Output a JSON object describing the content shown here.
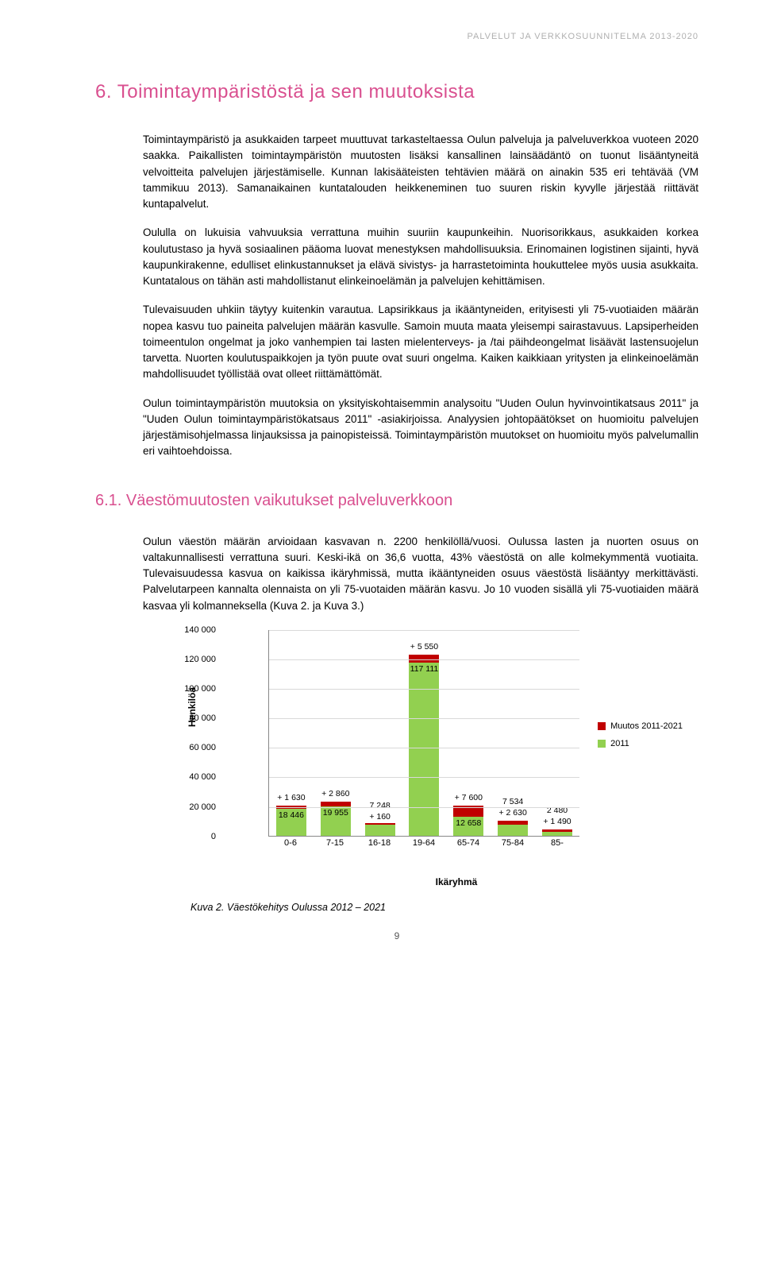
{
  "header": "PALVELUT JA VERKKOSUUNNITELMA 2013-2020",
  "title": "6. Toimintaympäristöstä ja sen muutoksista",
  "paragraphs": {
    "p1": "Toimintaympäristö ja asukkaiden tarpeet muuttuvat tarkasteltaessa Oulun palveluja ja palveluverkkoa vuoteen 2020 saakka. Paikallisten toimintaympäristön muutosten lisäksi kansallinen lainsäädäntö on tuonut lisääntyneitä velvoitteita palvelujen järjestämiselle. Kunnan lakisääteisten tehtävien määrä on ainakin 535 eri tehtävää (VM tammikuu 2013). Samanaikainen kuntatalouden heikkeneminen tuo suuren riskin kyvylle järjestää riittävät kuntapalvelut.",
    "p2": "Oululla on lukuisia vahvuuksia verrattuna muihin suuriin kaupunkeihin. Nuorisorikkaus, asukkaiden korkea koulutustaso ja hyvä sosiaalinen pääoma luovat menestyksen mahdollisuuksia. Erinomainen logistinen sijainti, hyvä kaupunkirakenne, edulliset elinkustannukset ja elävä sivistys- ja harrastetoiminta houkuttelee myös uusia asukkaita. Kuntatalous on tähän asti mahdollistanut elinkeinoelämän ja palvelujen kehittämisen.",
    "p3": "Tulevaisuuden uhkiin täytyy kuitenkin varautua. Lapsirikkaus ja ikääntyneiden, erityisesti yli 75-vuotiaiden määrän nopea kasvu tuo paineita palvelujen määrän kasvulle. Samoin muuta maata yleisempi sairastavuus. Lapsiperheiden toimeentulon ongelmat ja joko vanhempien tai lasten mielenterveys- ja /tai päihdeongelmat lisäävät lastensuojelun tarvetta. Nuorten koulutuspaikkojen ja työn puute ovat suuri ongelma. Kaiken kaikkiaan yritysten ja elinkeinoelämän mahdollisuudet työllistää ovat olleet riittämättömät.",
    "p4": "Oulun toimintaympäristön muutoksia on yksityiskohtaisemmin analysoitu \"Uuden Oulun hyvinvointikatsaus 2011\" ja \"Uuden Oulun toimintaympäristökatsaus 2011\" -asiakirjoissa. Analyysien johtopäätökset on huomioitu palvelujen järjestämisohjelmassa linjauksissa ja painopisteissä. Toimintaympäristön muutokset on huomioitu myös palvelumallin eri vaihtoehdoissa."
  },
  "subtitle": "6.1. Väestömuutosten vaikutukset palveluverkkoon",
  "sub_paragraphs": {
    "sp1": "Oulun väestön määrän arvioidaan kasvavan n. 2200 henkilöllä/vuosi. Oulussa lasten ja nuorten osuus on valtakunnallisesti verrattuna suuri. Keski-ikä on 36,6 vuotta, 43% väestöstä on alle kolmekymmentä vuotiaita. Tulevaisuudessa kasvua on kaikissa ikäryhmissä, mutta ikääntyneiden osuus väestöstä lisääntyy merkittävästi. Palvelutarpeen kannalta olennaista on yli 75-vuotaiden määrän kasvu. Jo 10 vuoden sisällä yli 75-vuotiaiden määrä kasvaa yli kolmanneksella (Kuva 2. ja Kuva 3.)"
  },
  "chart": {
    "type": "stacked-bar",
    "y_label": "Henkilöä",
    "x_label": "Ikäryhmä",
    "ylim": [
      0,
      140000
    ],
    "ytick_step": 20000,
    "yticks": [
      "0",
      "20 000",
      "40 000",
      "60 000",
      "80 000",
      "100 000",
      "120 000",
      "140 000"
    ],
    "categories": [
      "0-6",
      "7-15",
      "16-18",
      "19-64",
      "65-74",
      "75-84",
      "85-"
    ],
    "base_color": "#92d050",
    "change_color": "#c00000",
    "grid_color": "#d9d9d9",
    "base_values": [
      18446,
      19955,
      7248,
      117111,
      12658,
      7534,
      2480
    ],
    "change_values": [
      1630,
      2860,
      160,
      5550,
      7600,
      2630,
      1490
    ],
    "base_labels": [
      "18 446",
      "19 955",
      "7 248",
      "117 111",
      "12 658",
      "7 534",
      "2 480"
    ],
    "change_labels": [
      "+ 1 630",
      "+ 2 860",
      "+ 160",
      "+ 5 550",
      "+ 7 600",
      "+ 2 630",
      "+ 1 490"
    ],
    "legend": {
      "change": "Muutos 2011-2021",
      "base": "2011"
    }
  },
  "caption": "Kuva 2. Väestökehitys Oulussa 2012 – 2021",
  "page_number": "9"
}
